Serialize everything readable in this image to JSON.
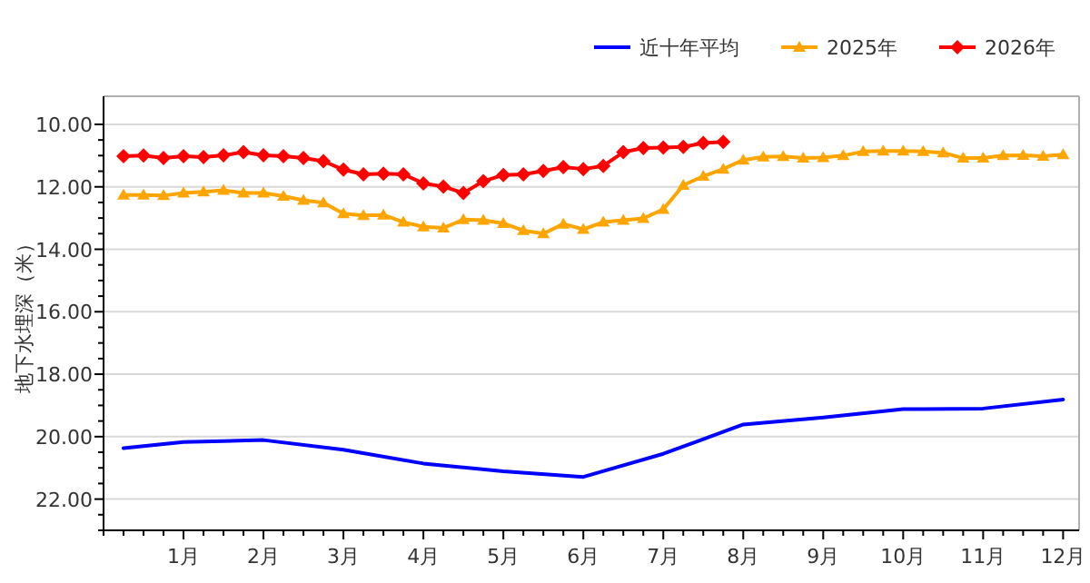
{
  "chart_data": {
    "type": "line",
    "ylabel": "地下水埋深（米）",
    "xlim": [
      0,
      12.2
    ],
    "ylim": [
      23,
      9.1
    ],
    "xticks": [
      {
        "value": 0,
        "label": null
      },
      {
        "value": 0.25,
        "label": null
      },
      {
        "value": 0.5,
        "label": null
      },
      {
        "value": 0.75,
        "label": null
      },
      {
        "value": 1,
        "label": "1月"
      },
      {
        "value": 1.25,
        "label": null
      },
      {
        "value": 1.5,
        "label": null
      },
      {
        "value": 1.75,
        "label": null
      },
      {
        "value": 2,
        "label": "2月"
      },
      {
        "value": 2.25,
        "label": null
      },
      {
        "value": 2.5,
        "label": null
      },
      {
        "value": 2.75,
        "label": null
      },
      {
        "value": 3,
        "label": "3月"
      },
      {
        "value": 3.25,
        "label": null
      },
      {
        "value": 3.5,
        "label": null
      },
      {
        "value": 3.75,
        "label": null
      },
      {
        "value": 4,
        "label": "4月"
      },
      {
        "value": 4.25,
        "label": null
      },
      {
        "value": 4.5,
        "label": null
      },
      {
        "value": 4.75,
        "label": null
      },
      {
        "value": 5,
        "label": "5月"
      },
      {
        "value": 5.25,
        "label": null
      },
      {
        "value": 5.5,
        "label": null
      },
      {
        "value": 5.75,
        "label": null
      },
      {
        "value": 6,
        "label": "6月"
      },
      {
        "value": 6.25,
        "label": null
      },
      {
        "value": 6.5,
        "label": null
      },
      {
        "value": 6.75,
        "label": null
      },
      {
        "value": 7,
        "label": "7月"
      },
      {
        "value": 7.25,
        "label": null
      },
      {
        "value": 7.5,
        "label": null
      },
      {
        "value": 7.75,
        "label": null
      },
      {
        "value": 8,
        "label": "8月"
      },
      {
        "value": 8.25,
        "label": null
      },
      {
        "value": 8.5,
        "label": null
      },
      {
        "value": 8.75,
        "label": null
      },
      {
        "value": 9,
        "label": "9月"
      },
      {
        "value": 9.25,
        "label": null
      },
      {
        "value": 9.5,
        "label": null
      },
      {
        "value": 9.75,
        "label": null
      },
      {
        "value": 10,
        "label": "10月"
      },
      {
        "value": 10.25,
        "label": null
      },
      {
        "value": 10.5,
        "label": null
      },
      {
        "value": 10.75,
        "label": null
      },
      {
        "value": 11,
        "label": "11月"
      },
      {
        "value": 11.25,
        "label": null
      },
      {
        "value": 11.5,
        "label": null
      },
      {
        "value": 11.75,
        "label": null
      },
      {
        "value": 12,
        "label": "12月"
      }
    ],
    "yticks": [
      {
        "value": 10,
        "label": "10.00"
      },
      {
        "value": 10.5,
        "label": null
      },
      {
        "value": 11,
        "label": null
      },
      {
        "value": 11.5,
        "label": null
      },
      {
        "value": 12,
        "label": "12.00"
      },
      {
        "value": 12.5,
        "label": null
      },
      {
        "value": 13,
        "label": null
      },
      {
        "value": 13.5,
        "label": null
      },
      {
        "value": 14,
        "label": "14.00"
      },
      {
        "value": 14.5,
        "label": null
      },
      {
        "value": 15,
        "label": null
      },
      {
        "value": 15.5,
        "label": null
      },
      {
        "value": 16,
        "label": "16.00"
      },
      {
        "value": 16.5,
        "label": null
      },
      {
        "value": 17,
        "label": null
      },
      {
        "value": 17.5,
        "label": null
      },
      {
        "value": 18,
        "label": "18.00"
      },
      {
        "value": 18.5,
        "label": null
      },
      {
        "value": 19,
        "label": null
      },
      {
        "value": 19.5,
        "label": null
      },
      {
        "value": 20,
        "label": "20.00"
      },
      {
        "value": 20.5,
        "label": null
      },
      {
        "value": 21,
        "label": null
      },
      {
        "value": 21.5,
        "label": null
      },
      {
        "value": 22,
        "label": "22.00"
      },
      {
        "value": 22.5,
        "label": null
      },
      {
        "value": 23,
        "label": null
      }
    ],
    "grid": "y",
    "legend": "top right",
    "line_style": "solid",
    "series": [
      {
        "name": "近十年平均",
        "color": "#0000ff",
        "marker": "none",
        "x": [
          0.25,
          1,
          2,
          3,
          4,
          5,
          6,
          7,
          8,
          9,
          10,
          11,
          12
        ],
        "values": [
          20.37,
          20.17,
          20.11,
          20.42,
          20.86,
          21.11,
          21.29,
          20.55,
          19.61,
          19.39,
          19.12,
          19.1,
          18.81
        ]
      },
      {
        "name": "2025年",
        "color": "#ffa500",
        "marker": "triangle",
        "x": [
          0.25,
          0.5,
          0.75,
          1,
          1.25,
          1.5,
          1.75,
          2,
          2.25,
          2.5,
          2.75,
          3,
          3.25,
          3.5,
          3.75,
          4,
          4.25,
          4.5,
          4.75,
          5,
          5.25,
          5.5,
          5.75,
          6,
          6.25,
          6.5,
          6.75,
          7,
          7.25,
          7.5,
          7.75,
          8,
          8.25,
          8.5,
          8.75,
          9,
          9.25,
          9.5,
          9.75,
          10,
          10.25,
          10.5,
          10.75,
          11,
          11.25,
          11.5,
          11.75,
          12
        ],
        "values": [
          12.26,
          12.26,
          12.28,
          12.2,
          12.16,
          12.11,
          12.2,
          12.2,
          12.3,
          12.43,
          12.51,
          12.86,
          12.92,
          12.9,
          13.13,
          13.28,
          13.32,
          13.05,
          13.07,
          13.17,
          13.4,
          13.5,
          13.19,
          13.36,
          13.13,
          13.07,
          13.01,
          12.72,
          11.95,
          11.66,
          11.43,
          11.14,
          11.04,
          11.03,
          11.08,
          11.06,
          11.0,
          10.87,
          10.85,
          10.85,
          10.87,
          10.91,
          11.08,
          11.08,
          11.0,
          10.99,
          11.02,
          10.97
        ]
      },
      {
        "name": "2026年",
        "color": "#ff0000",
        "marker": "diamond",
        "x": [
          0.25,
          0.5,
          0.75,
          1,
          1.25,
          1.5,
          1.75,
          2,
          2.25,
          2.5,
          2.75,
          3,
          3.25,
          3.5,
          3.75,
          4,
          4.25,
          4.5,
          4.75,
          5,
          5.25,
          5.5,
          5.75,
          6,
          6.25,
          6.5,
          6.75,
          7,
          7.25,
          7.5,
          7.75
        ],
        "values": [
          11.02,
          11.0,
          11.08,
          11.02,
          11.05,
          10.99,
          10.89,
          10.99,
          11.02,
          11.08,
          11.18,
          11.45,
          11.6,
          11.58,
          11.6,
          11.89,
          11.99,
          12.2,
          11.82,
          11.62,
          11.6,
          11.49,
          11.37,
          11.43,
          11.33,
          10.89,
          10.76,
          10.74,
          10.72,
          10.6,
          10.56
        ]
      }
    ]
  }
}
